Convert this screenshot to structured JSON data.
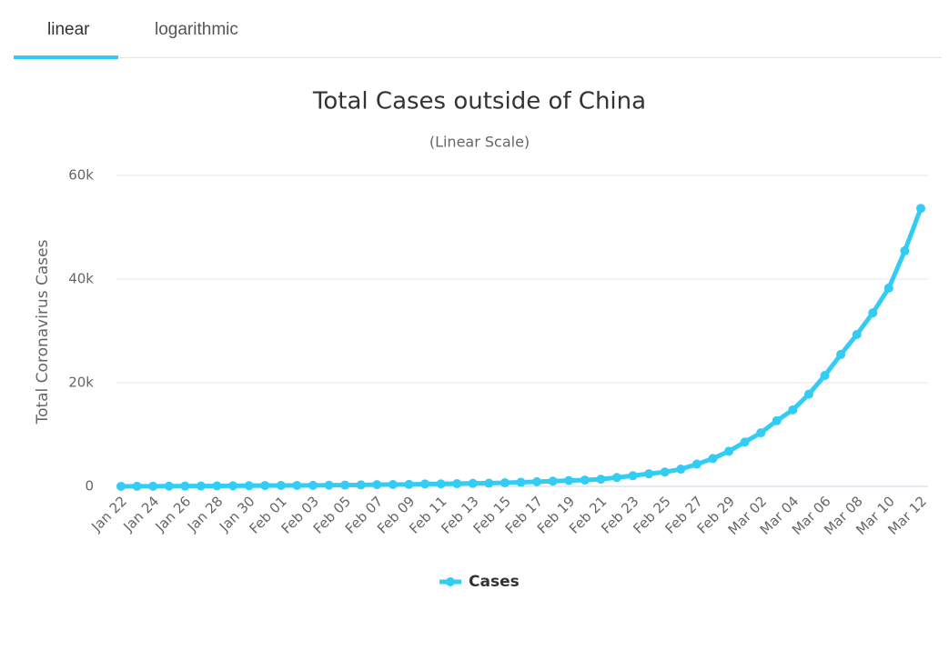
{
  "tabs": [
    "linear",
    "logarithmic"
  ],
  "chart_data": {
    "type": "line",
    "title": "Total Cases outside of China",
    "subtitle": "(Linear Scale)",
    "y_label": "Total Coronavirus Cases",
    "categories": [
      "Jan 22",
      null,
      "Jan 24",
      null,
      "Jan 26",
      null,
      "Jan 28",
      null,
      "Jan 30",
      null,
      "Feb 01",
      null,
      "Feb 03",
      null,
      "Feb 05",
      null,
      "Feb 07",
      null,
      "Feb 09",
      null,
      "Feb 11",
      null,
      "Feb 13",
      null,
      "Feb 15",
      null,
      "Feb 17",
      null,
      "Feb 19",
      null,
      "Feb 21",
      null,
      "Feb 23",
      null,
      "Feb 25",
      null,
      "Feb 27",
      null,
      "Feb 29",
      null,
      "Mar 02",
      null,
      "Mar 04",
      null,
      "Mar 06",
      null,
      "Mar 08",
      null,
      "Mar 10",
      null,
      "Mar 12"
    ],
    "series": [
      {
        "name": "Cases",
        "color": "#33ccf5",
        "values": [
          9,
          15,
          30,
          40,
          56,
          66,
          84,
          102,
          131,
          159,
          173,
          186,
          190,
          221,
          248,
          278,
          330,
          354,
          382,
          461,
          481,
          526,
          587,
          608,
          697,
          781,
          896,
          999,
          1124,
          1212,
          1385,
          1715,
          2055,
          2429,
          2764,
          3323,
          4288,
          5364,
          6780,
          8555,
          10336,
          12669,
          14768,
          17783,
          21397,
          25450,
          29297,
          33476,
          38275,
          45451,
          53636
        ]
      }
    ],
    "ylim": [
      0,
      60000
    ],
    "yticks": [
      0,
      {
        "value": 20000,
        "label": "20k"
      },
      {
        "value": 40000,
        "label": "40k"
      },
      {
        "value": 60000,
        "label": "60k"
      }
    ],
    "grid": true,
    "legend": "bottom"
  }
}
